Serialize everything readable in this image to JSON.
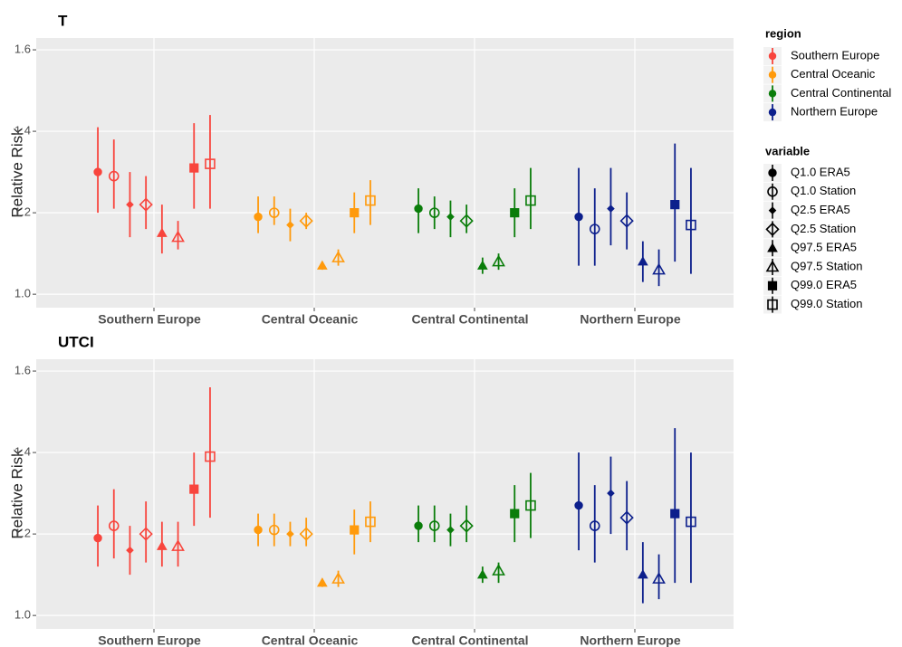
{
  "chart_data": [
    {
      "type": "pointrange",
      "title": "T",
      "y_label": "Relative Risk",
      "categories": [
        "Southern Europe",
        "Central Oceanic",
        "Central Continental",
        "Northern Europe"
      ],
      "ylim": [
        0.967,
        1.629
      ],
      "yticks": [
        {
          "value": 1.0,
          "label": "1.0"
        },
        {
          "value": 1.2,
          "label": "1.2"
        },
        {
          "value": 1.4,
          "label": "1.4"
        },
        {
          "value": 1.6,
          "label": "1.6"
        }
      ],
      "grid": true,
      "series": [
        {
          "values": [
            1.3,
            1.19,
            1.21,
            1.19
          ],
          "lower": [
            1.2,
            1.15,
            1.15,
            1.07
          ],
          "upper": [
            1.41,
            1.24,
            1.26,
            1.31
          ]
        },
        {
          "values": [
            1.29,
            1.2,
            1.2,
            1.16
          ],
          "lower": [
            1.21,
            1.17,
            1.16,
            1.07
          ],
          "upper": [
            1.38,
            1.24,
            1.24,
            1.26
          ]
        },
        {
          "values": [
            1.22,
            1.17,
            1.19,
            1.21
          ],
          "lower": [
            1.14,
            1.13,
            1.14,
            1.12
          ],
          "upper": [
            1.3,
            1.21,
            1.23,
            1.31
          ]
        },
        {
          "values": [
            1.22,
            1.18,
            1.18,
            1.18
          ],
          "lower": [
            1.16,
            1.16,
            1.15,
            1.11
          ],
          "upper": [
            1.29,
            1.2,
            1.22,
            1.25
          ]
        },
        {
          "values": [
            1.15,
            1.07,
            1.07,
            1.08
          ],
          "lower": [
            1.1,
            1.06,
            1.05,
            1.03
          ],
          "upper": [
            1.22,
            1.08,
            1.09,
            1.13
          ]
        },
        {
          "values": [
            1.14,
            1.09,
            1.08,
            1.06
          ],
          "lower": [
            1.11,
            1.07,
            1.06,
            1.02
          ],
          "upper": [
            1.18,
            1.11,
            1.1,
            1.11
          ]
        },
        {
          "values": [
            1.31,
            1.2,
            1.2,
            1.22
          ],
          "lower": [
            1.21,
            1.15,
            1.14,
            1.08
          ],
          "upper": [
            1.42,
            1.25,
            1.26,
            1.37
          ]
        },
        {
          "values": [
            1.32,
            1.23,
            1.23,
            1.17
          ],
          "lower": [
            1.21,
            1.17,
            1.16,
            1.05
          ],
          "upper": [
            1.44,
            1.28,
            1.31,
            1.31
          ]
        }
      ]
    },
    {
      "type": "pointrange",
      "title": "UTCI",
      "y_label": "Relative Risk",
      "categories": [
        "Southern Europe",
        "Central Oceanic",
        "Central Continental",
        "Northern Europe"
      ],
      "ylim": [
        0.967,
        1.629
      ],
      "yticks": [
        {
          "value": 1.0,
          "label": "1.0"
        },
        {
          "value": 1.2,
          "label": "1.2"
        },
        {
          "value": 1.4,
          "label": "1.4"
        },
        {
          "value": 1.6,
          "label": "1.6"
        }
      ],
      "grid": true,
      "series": [
        {
          "values": [
            1.19,
            1.21,
            1.22,
            1.27
          ],
          "lower": [
            1.12,
            1.17,
            1.18,
            1.16
          ],
          "upper": [
            1.27,
            1.25,
            1.27,
            1.4
          ]
        },
        {
          "values": [
            1.22,
            1.21,
            1.22,
            1.22
          ],
          "lower": [
            1.14,
            1.17,
            1.18,
            1.13
          ],
          "upper": [
            1.31,
            1.25,
            1.27,
            1.32
          ]
        },
        {
          "values": [
            1.16,
            1.2,
            1.21,
            1.3
          ],
          "lower": [
            1.1,
            1.17,
            1.17,
            1.2
          ],
          "upper": [
            1.22,
            1.23,
            1.25,
            1.39
          ]
        },
        {
          "values": [
            1.2,
            1.2,
            1.22,
            1.24
          ],
          "lower": [
            1.13,
            1.17,
            1.18,
            1.16
          ],
          "upper": [
            1.28,
            1.24,
            1.27,
            1.33
          ]
        },
        {
          "values": [
            1.17,
            1.08,
            1.1,
            1.1
          ],
          "lower": [
            1.12,
            1.07,
            1.08,
            1.03
          ],
          "upper": [
            1.23,
            1.09,
            1.12,
            1.18
          ]
        },
        {
          "values": [
            1.17,
            1.09,
            1.11,
            1.09
          ],
          "lower": [
            1.12,
            1.07,
            1.08,
            1.04
          ],
          "upper": [
            1.23,
            1.11,
            1.13,
            1.15
          ]
        },
        {
          "values": [
            1.31,
            1.21,
            1.25,
            1.25
          ],
          "lower": [
            1.22,
            1.15,
            1.18,
            1.08
          ],
          "upper": [
            1.4,
            1.26,
            1.32,
            1.46
          ]
        },
        {
          "values": [
            1.39,
            1.23,
            1.27,
            1.23
          ],
          "lower": [
            1.24,
            1.18,
            1.19,
            1.08
          ],
          "upper": [
            1.56,
            1.28,
            1.35,
            1.4
          ]
        }
      ]
    }
  ],
  "legend": {
    "region": {
      "title": "region",
      "items": [
        {
          "name": "Southern Europe",
          "color": "#f8453d"
        },
        {
          "name": "Central Oceanic",
          "color": "#ff9a0c"
        },
        {
          "name": "Central Continental",
          "color": "#0a7d0a"
        },
        {
          "name": "Northern Europe",
          "color": "#0c1f8c"
        }
      ]
    },
    "variable": {
      "title": "variable",
      "items": [
        {
          "name": "Q1.0 ERA5",
          "shape": "circle-filled"
        },
        {
          "name": "Q1.0 Station",
          "shape": "circle-open"
        },
        {
          "name": "Q2.5 ERA5",
          "shape": "diamond-filled"
        },
        {
          "name": "Q2.5 Station",
          "shape": "diamond-open"
        },
        {
          "name": "Q97.5 ERA5",
          "shape": "triangle-filled"
        },
        {
          "name": "Q97.5 Station",
          "shape": "triangle-open"
        },
        {
          "name": "Q99.0 ERA5",
          "shape": "square-filled"
        },
        {
          "name": "Q99.0 Station",
          "shape": "square-open"
        }
      ]
    }
  }
}
